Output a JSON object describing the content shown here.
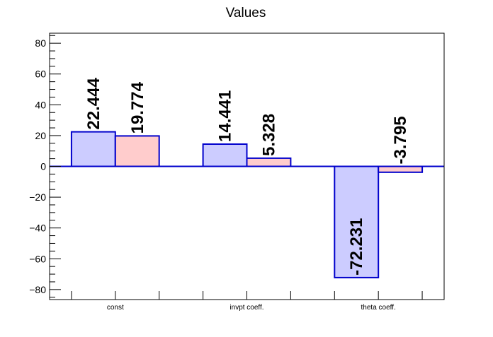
{
  "chart_data": {
    "type": "bar",
    "title": "Values",
    "categories": [
      "const",
      "invpt coeff.",
      "theta coeff."
    ],
    "series": [
      {
        "values": [
          22.444,
          14.441,
          -72.231
        ],
        "labels": [
          "22.444",
          "14.441",
          "-72.231"
        ],
        "fill": "#ccccff",
        "stroke": "#0000cc"
      },
      {
        "values": [
          19.774,
          5.328,
          -3.795
        ],
        "labels": [
          "19.774",
          "5.328",
          "-3.795"
        ],
        "fill": "#ffcccc",
        "stroke": "#0000cc"
      }
    ],
    "ylim": [
      -86.5,
      86.5
    ],
    "yticks": [
      -80,
      -60,
      -40,
      -20,
      0,
      20,
      40,
      60,
      80
    ],
    "ytick_labels": [
      "−80",
      "−60",
      "−40",
      "−20",
      "0",
      "20",
      "40",
      "60",
      "80"
    ],
    "zero_line_color": "#0000cc",
    "grid": false,
    "legend": "none"
  }
}
